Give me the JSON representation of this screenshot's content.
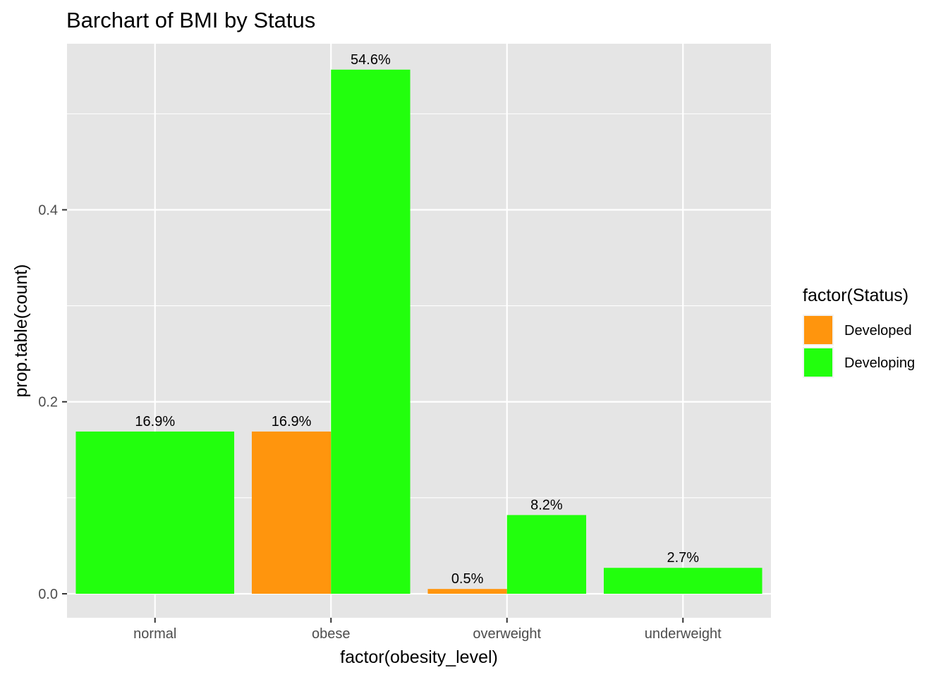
{
  "chart_data": {
    "type": "bar",
    "title": "Barchart of BMI by Status",
    "xlabel": "factor(obesity_level)",
    "ylabel": "prop.table(count)",
    "categories": [
      "normal",
      "obese",
      "overweight",
      "underweight"
    ],
    "yticks": [
      0.0,
      0.2,
      0.4
    ],
    "ytick_labels": [
      "0.0",
      "0.2",
      "0.4"
    ],
    "ylim": [
      -0.025,
      0.573
    ],
    "grid": true,
    "legend": {
      "title": "factor(Status)",
      "position": "right",
      "entries": [
        {
          "name": "Developed",
          "color": "#FF950D"
        },
        {
          "name": "Developing",
          "color": "#22FF0D"
        }
      ]
    },
    "bars": [
      {
        "category": "normal",
        "series": "Developing",
        "value": 0.169,
        "label": "16.9%",
        "slot": "full"
      },
      {
        "category": "obese",
        "series": "Developed",
        "value": 0.169,
        "label": "16.9%",
        "slot": "left"
      },
      {
        "category": "obese",
        "series": "Developing",
        "value": 0.546,
        "label": "54.6%",
        "slot": "right"
      },
      {
        "category": "overweight",
        "series": "Developed",
        "value": 0.005,
        "label": "0.5%",
        "slot": "left"
      },
      {
        "category": "overweight",
        "series": "Developing",
        "value": 0.082,
        "label": "8.2%",
        "slot": "right"
      },
      {
        "category": "underweight",
        "series": "Developing",
        "value": 0.027,
        "label": "2.7%",
        "slot": "full"
      }
    ],
    "colors": {
      "panel": "#E5E5E5",
      "grid": "#FFFFFF",
      "Developed": "#FF950D",
      "Developing": "#22FF0D"
    }
  }
}
